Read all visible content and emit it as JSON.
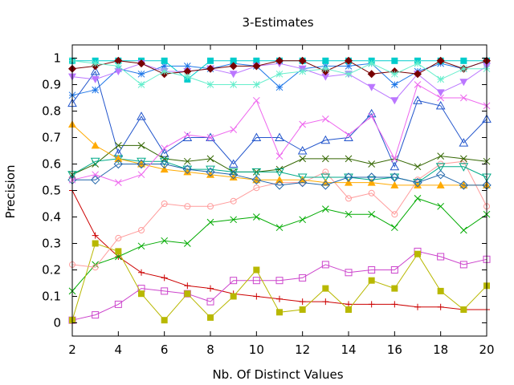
{
  "chart_data": {
    "type": "line",
    "title": "3-Estimates",
    "xlabel": "Nb. Of Distinct Values",
    "ylabel": "Precision",
    "xlim": [
      2,
      20
    ],
    "ylim": [
      -0.05,
      1.05
    ],
    "x_ticks": [
      2,
      4,
      6,
      8,
      10,
      12,
      14,
      16,
      18,
      20
    ],
    "y_ticks": [
      0,
      0.1,
      0.2,
      0.3,
      0.4,
      0.5,
      0.6,
      0.7,
      0.8,
      0.9,
      1
    ],
    "x_tick_labels": [
      "2",
      "4",
      "6",
      "8",
      "10",
      "12",
      "14",
      "16",
      "18",
      "20"
    ],
    "y_tick_labels": [
      "0",
      "0.1",
      "0.2",
      "0.3",
      "0.4",
      "0.5",
      "0.6",
      "0.7",
      "0.8",
      "0.9",
      "1"
    ],
    "grid": false,
    "legend": "none",
    "x": [
      2,
      3,
      4,
      5,
      6,
      7,
      8,
      9,
      10,
      11,
      12,
      13,
      14,
      15,
      16,
      17,
      18,
      19,
      20
    ],
    "series": [
      {
        "color": "#cc0000",
        "marker": "plus",
        "values": [
          0.5,
          0.33,
          0.25,
          0.19,
          0.17,
          0.14,
          0.13,
          0.11,
          0.1,
          0.09,
          0.08,
          0.08,
          0.07,
          0.07,
          0.07,
          0.06,
          0.06,
          0.05,
          0.05
        ]
      },
      {
        "color": "#00aa00",
        "marker": "cross",
        "values": [
          0.12,
          0.22,
          0.25,
          0.29,
          0.31,
          0.3,
          0.38,
          0.39,
          0.4,
          0.36,
          0.39,
          0.43,
          0.41,
          0.41,
          0.36,
          0.47,
          0.44,
          0.35,
          0.41
        ]
      },
      {
        "color": "#1f77e8",
        "marker": "star",
        "values": [
          0.86,
          0.88,
          0.96,
          0.94,
          0.97,
          0.97,
          0.96,
          0.98,
          0.97,
          0.89,
          0.96,
          0.97,
          0.97,
          0.98,
          0.9,
          0.95,
          0.98,
          0.96,
          0.99
        ]
      },
      {
        "color": "#cc44cc",
        "marker": "open-square",
        "values": [
          0.01,
          0.03,
          0.07,
          0.13,
          0.12,
          0.11,
          0.08,
          0.16,
          0.16,
          0.16,
          0.17,
          0.22,
          0.19,
          0.2,
          0.2,
          0.27,
          0.25,
          0.22,
          0.24
        ]
      },
      {
        "color": "#00cccc",
        "marker": "filled-square",
        "values": [
          0.99,
          0.99,
          0.99,
          0.99,
          0.99,
          0.92,
          0.99,
          0.99,
          0.99,
          0.99,
          0.99,
          0.99,
          0.99,
          0.99,
          0.99,
          0.99,
          0.99,
          0.99,
          0.99
        ]
      },
      {
        "color": "#b8b800",
        "marker": "filled-square",
        "values": [
          0.01,
          0.3,
          0.27,
          0.11,
          0.01,
          0.11,
          0.02,
          0.1,
          0.2,
          0.04,
          0.05,
          0.13,
          0.05,
          0.16,
          0.13,
          0.26,
          0.12,
          0.05,
          0.14
        ]
      },
      {
        "color": "#2255cc",
        "marker": "open-triangle",
        "values": [
          0.83,
          0.95,
          0.64,
          0.78,
          0.64,
          0.7,
          0.7,
          0.6,
          0.7,
          0.7,
          0.65,
          0.69,
          0.7,
          0.79,
          0.59,
          0.84,
          0.82,
          0.68,
          0.77
        ]
      },
      {
        "color": "#ff9c9c",
        "marker": "open-circle",
        "values": [
          0.22,
          0.21,
          0.32,
          0.35,
          0.45,
          0.44,
          0.44,
          0.46,
          0.51,
          0.53,
          0.53,
          0.57,
          0.47,
          0.49,
          0.41,
          0.54,
          0.6,
          0.61,
          0.44
        ]
      },
      {
        "color": "#336600",
        "marker": "cross",
        "values": [
          0.56,
          0.6,
          0.67,
          0.67,
          0.62,
          0.61,
          0.62,
          0.57,
          0.57,
          0.58,
          0.62,
          0.62,
          0.62,
          0.6,
          0.62,
          0.59,
          0.63,
          0.62,
          0.61
        ]
      },
      {
        "color": "#00aa88",
        "marker": "open-down-triangle",
        "values": [
          0.56,
          0.61,
          0.62,
          0.61,
          0.61,
          0.58,
          0.58,
          0.57,
          0.57,
          0.57,
          0.55,
          0.55,
          0.55,
          0.54,
          0.55,
          0.53,
          0.59,
          0.59,
          0.55
        ]
      },
      {
        "color": "#ffaa00",
        "marker": "filled-triangle",
        "values": [
          0.75,
          0.67,
          0.62,
          0.6,
          0.58,
          0.57,
          0.56,
          0.55,
          0.54,
          0.54,
          0.54,
          0.53,
          0.53,
          0.53,
          0.52,
          0.52,
          0.52,
          0.52,
          0.52
        ]
      },
      {
        "color": "#2266aa",
        "marker": "open-diamond",
        "values": [
          0.54,
          0.54,
          0.6,
          0.6,
          0.6,
          0.58,
          0.57,
          0.56,
          0.54,
          0.52,
          0.53,
          0.52,
          0.55,
          0.55,
          0.55,
          0.53,
          0.56,
          0.52,
          0.52
        ]
      },
      {
        "color": "#ee66ee",
        "marker": "cross",
        "values": [
          0.54,
          0.56,
          0.53,
          0.56,
          0.66,
          0.71,
          0.7,
          0.73,
          0.84,
          0.63,
          0.75,
          0.77,
          0.71,
          0.78,
          0.62,
          0.9,
          0.85,
          0.85,
          0.82
        ]
      },
      {
        "color": "#bb77ff",
        "marker": "filled-down-triangle",
        "values": [
          0.93,
          0.92,
          0.95,
          0.98,
          0.95,
          0.95,
          0.96,
          0.94,
          0.97,
          0.98,
          0.96,
          0.93,
          0.94,
          0.89,
          0.84,
          0.94,
          0.87,
          0.91,
          0.97
        ]
      },
      {
        "color": "#770000",
        "marker": "filled-diamond",
        "values": [
          0.96,
          0.97,
          0.99,
          0.98,
          0.94,
          0.95,
          0.96,
          0.97,
          0.97,
          0.99,
          0.99,
          0.95,
          0.99,
          0.94,
          0.95,
          0.94,
          0.99,
          0.96,
          0.99
        ]
      },
      {
        "color": "#66eecc",
        "marker": "star",
        "values": [
          0.99,
          0.98,
          0.97,
          0.9,
          0.95,
          0.93,
          0.9,
          0.9,
          0.9,
          0.94,
          0.95,
          0.96,
          0.94,
          0.98,
          0.94,
          0.98,
          0.92,
          0.96,
          0.96
        ]
      }
    ]
  }
}
